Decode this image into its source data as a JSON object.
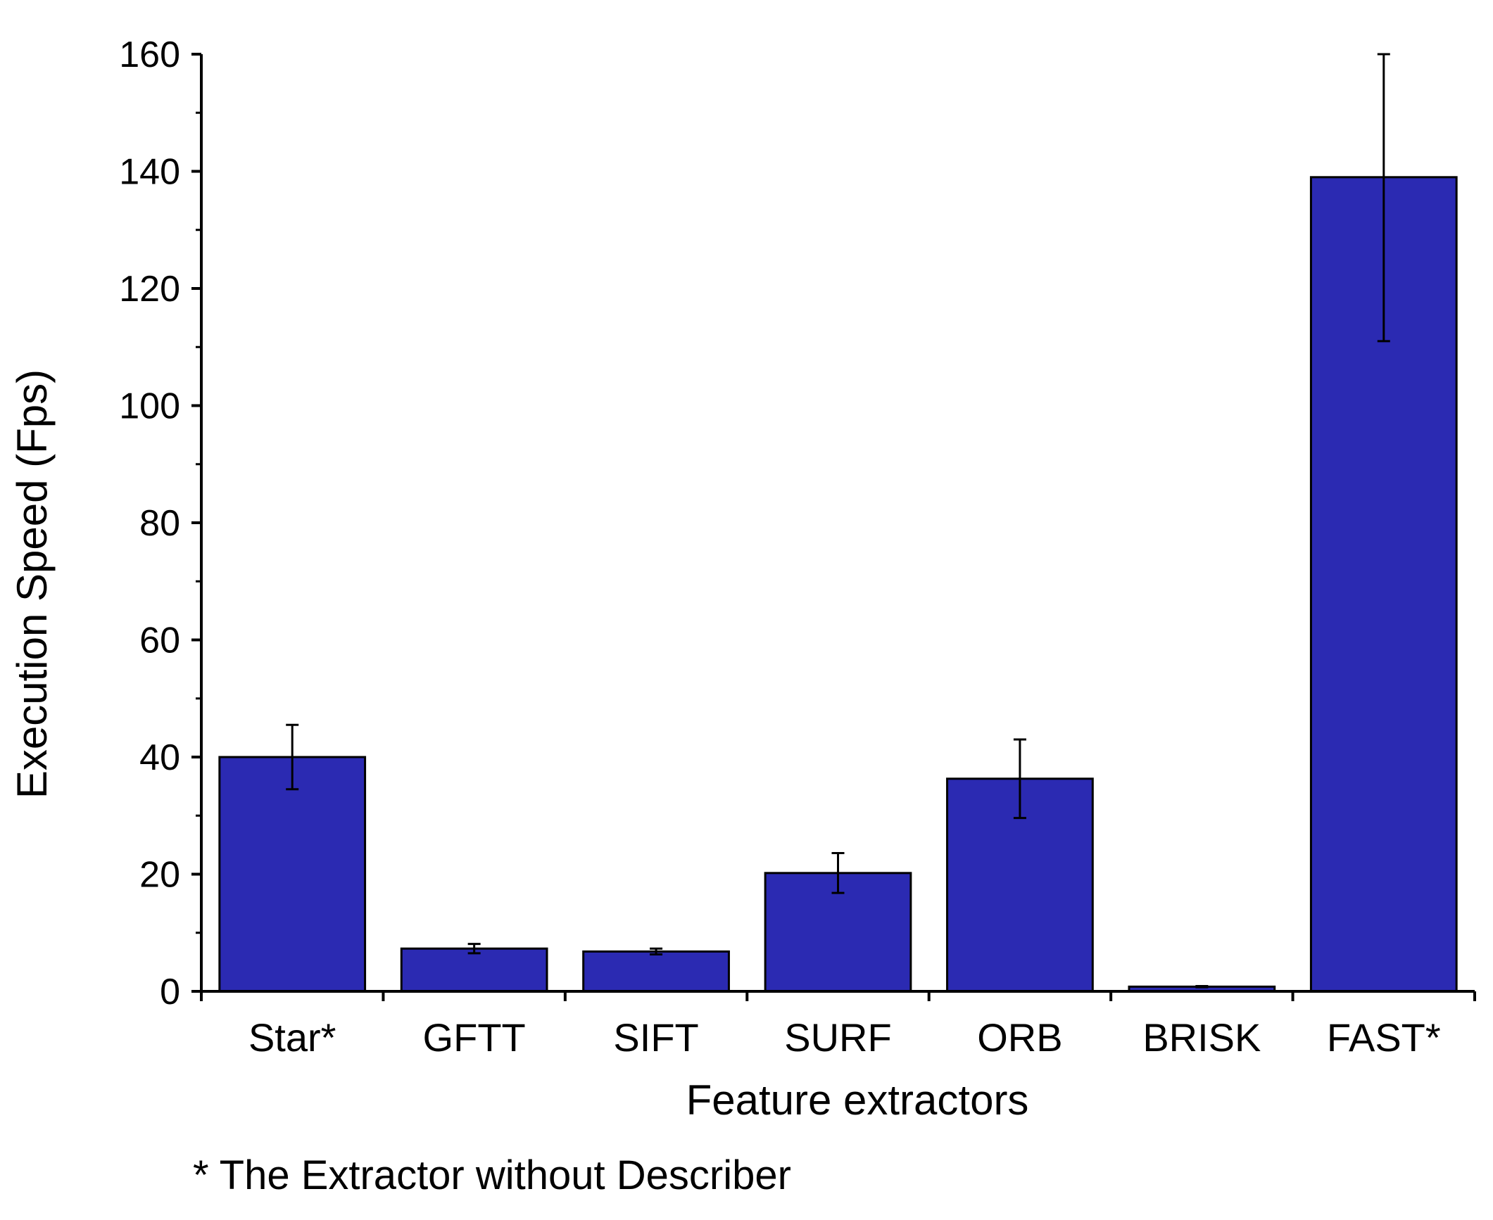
{
  "chart_data": {
    "type": "bar",
    "categories": [
      "Star*",
      "GFTT",
      "SIFT",
      "SURF",
      "ORB",
      "BRISK",
      "FAST*"
    ],
    "values": [
      40,
      7.3,
      6.8,
      20.2,
      36.3,
      0.8,
      139
    ],
    "errors": [
      5.5,
      0.8,
      0.5,
      3.4,
      6.7,
      0.1,
      28
    ],
    "xlabel": "Feature extractors",
    "ylabel": "Execution Speed (Fps)",
    "ylim": [
      0,
      160
    ],
    "yticks": [
      0,
      20,
      40,
      60,
      80,
      100,
      120,
      140,
      160
    ],
    "ytick_labels": [
      "0",
      "20",
      "40",
      "60",
      "80",
      "100",
      "120",
      "140",
      "160"
    ],
    "footnote": "* The Extractor without Describer",
    "grid": false,
    "legend": "none",
    "colors": {
      "bar": "#2b2ab2",
      "edge": "#000000"
    }
  }
}
